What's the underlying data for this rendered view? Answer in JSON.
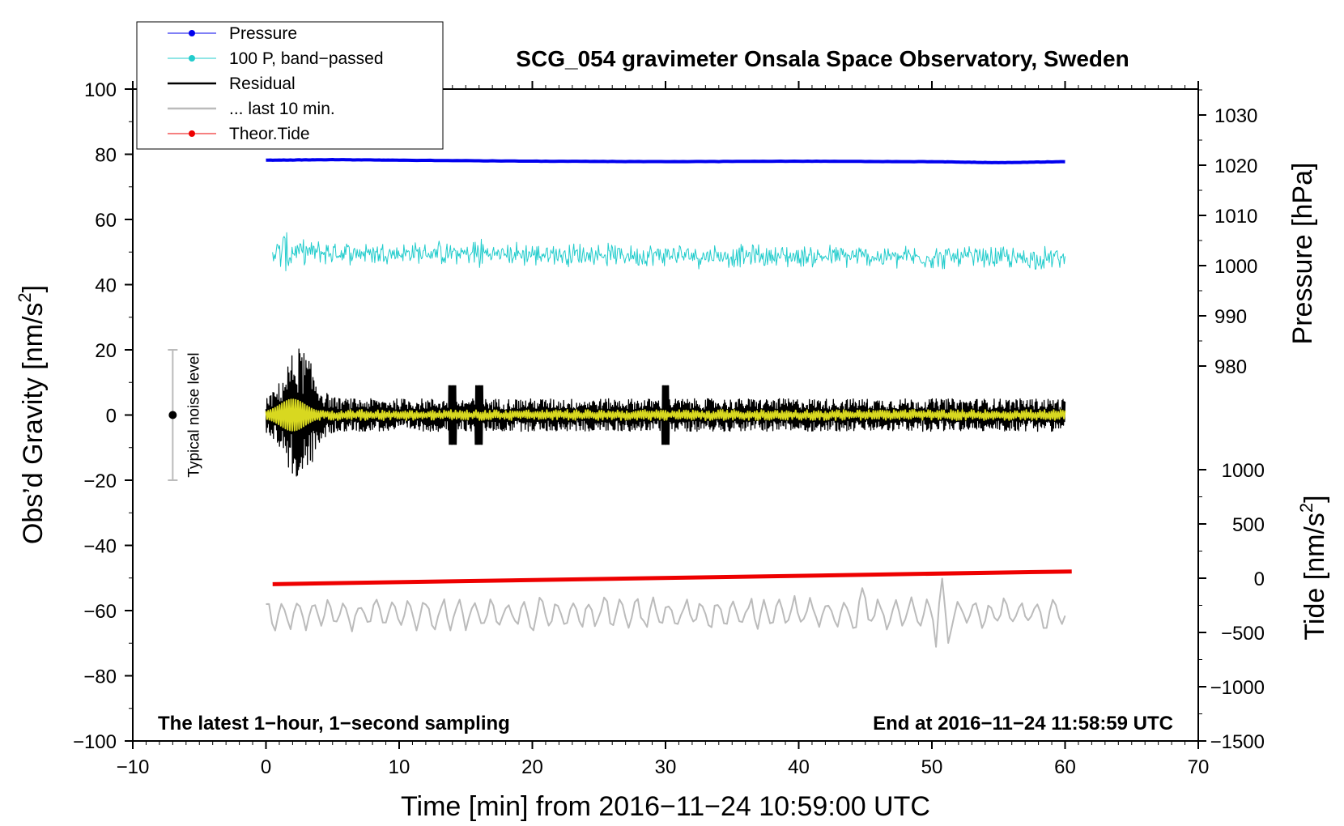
{
  "chart_data": {
    "type": "line",
    "title": "SCG_054 gravimeter Onsala Space Observatory, Sweden",
    "xlabel": "Time [min] from 2016−11−24 10:59:00 UTC",
    "ylabel": "Obs’d Gravity [nm/s",
    "ylabel_sup": "2",
    "ylabel_close": "]",
    "xlim": [
      -10,
      70
    ],
    "ylim": [
      -100,
      100
    ],
    "x_ticks": [
      -10,
      0,
      10,
      20,
      30,
      40,
      50,
      60,
      70
    ],
    "x_tick_labels": [
      "−10",
      "0",
      "10",
      "20",
      "30",
      "40",
      "50",
      "60",
      "70"
    ],
    "y_ticks": [
      -100,
      -80,
      -60,
      -40,
      -20,
      0,
      20,
      40,
      60,
      80,
      100
    ],
    "y_tick_labels": [
      "−100",
      "−80",
      "−60",
      "−40",
      "−20",
      "0",
      "20",
      "40",
      "60",
      "80",
      "100"
    ],
    "pressure_axis": {
      "label": "Pressure [hPa]",
      "ticks": [
        980,
        990,
        1000,
        1010,
        1020,
        1030
      ],
      "tick_labels": [
        "980",
        "990",
        "1000",
        "1010",
        "1020",
        "1030"
      ]
    },
    "tide_axis": {
      "label": "Tide [nm/s",
      "label_sup": "2",
      "label_close": "]",
      "ticks": [
        -1500,
        -1000,
        -500,
        0,
        500,
        1000
      ],
      "tick_labels": [
        "−1500",
        "−1000",
        "−500",
        "0",
        "500",
        "1000"
      ]
    },
    "legend": [
      {
        "label": "Pressure",
        "color": "#0000ee",
        "marker": true
      },
      {
        "label": "100 P, band−passed",
        "color": "#22cccc",
        "marker": true
      },
      {
        "label": "Residual",
        "color": "#000000",
        "marker": false
      },
      {
        "label": "... last 10 min.",
        "color": "#bbbbbb",
        "marker": false
      },
      {
        "label": "Theor.Tide",
        "color": "#ee0000",
        "marker": true
      }
    ],
    "series": [
      {
        "name": "Pressure",
        "unit": "hPa",
        "color": "#0000ee",
        "x": [
          0,
          5,
          10,
          20,
          30,
          40,
          50,
          55,
          60
        ],
        "values": [
          1021.0,
          1021.1,
          1021.0,
          1020.8,
          1020.7,
          1020.8,
          1020.7,
          1020.5,
          1020.7
        ]
      },
      {
        "name": "100 P, band-passed",
        "plot_units": "nm/s2",
        "color": "#22cccc",
        "x_start": 0.5,
        "x_end": 60,
        "center_start": 50,
        "center_end": 48,
        "amplitude": 3
      },
      {
        "name": "Residual",
        "plot_units": "nm/s2",
        "color": "#000000",
        "x_start": 0,
        "x_end": 60,
        "center": 0,
        "peak_amplitude": 21,
        "peak_time": 2.5,
        "background_amplitude": 5
      },
      {
        "name": "Residual smoothed",
        "plot_units": "nm/s2",
        "color": "#d8d820",
        "x_start": 0,
        "x_end": 60,
        "center": 0,
        "amplitude": 2
      },
      {
        "name": "... last 10 min.",
        "plot_units": "nm/s2",
        "color": "#bbbbbb",
        "x_start": 0,
        "x_end": 60,
        "center": -61,
        "amplitude": 4
      },
      {
        "name": "Theor.Tide",
        "unit": "nm/s2",
        "color": "#ee0000",
        "x": [
          0.5,
          60.5
        ],
        "values": [
          -55,
          62
        ]
      }
    ],
    "noise_bar": {
      "x": -7,
      "y_min": -20,
      "y_max": 20,
      "label": "Typical noise level"
    },
    "annotations": {
      "left": "The latest 1−hour, 1−second sampling",
      "right": "End at 2016−11−24 11:58:59 UTC"
    }
  }
}
